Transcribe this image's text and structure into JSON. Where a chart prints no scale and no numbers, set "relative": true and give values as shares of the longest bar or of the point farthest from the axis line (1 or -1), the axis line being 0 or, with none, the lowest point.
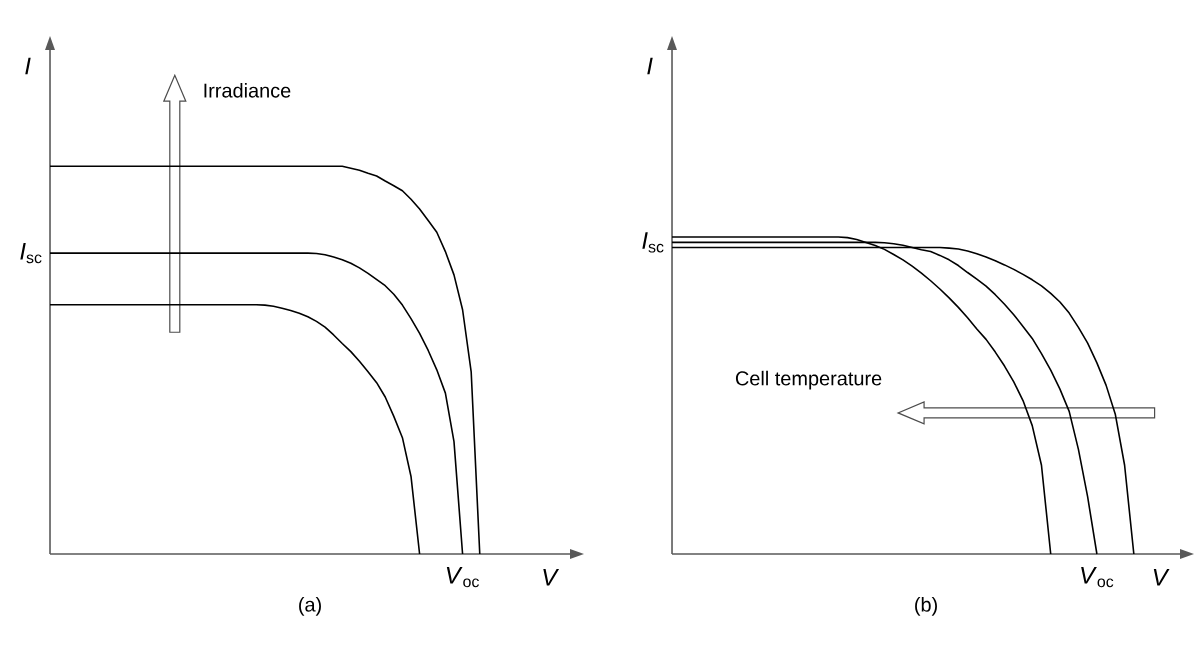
{
  "chart_data": [
    {
      "type": "line",
      "relative": true,
      "title": "(a)",
      "xlabel": "V",
      "ylabel": "I",
      "categories": [
        null,
        null,
        null,
        null,
        null,
        null,
        null,
        null,
        null,
        null,
        null,
        null,
        null,
        null,
        null,
        null,
        null,
        null,
        null,
        null,
        null,
        null,
        null,
        null,
        null,
        null,
        null,
        null,
        null,
        null,
        null,
        null,
        null,
        null,
        null,
        null,
        null,
        null,
        null,
        null,
        null,
        null,
        null,
        null,
        null,
        null,
        null,
        null,
        null,
        null,
        null
      ],
      "series": [
        {
          "color": "#000000",
          "values": [
            1,
            1,
            1,
            1,
            1,
            1,
            1,
            1,
            1,
            1,
            1,
            1,
            1,
            1,
            1,
            1,
            1,
            1,
            1,
            1,
            1,
            1,
            1,
            1,
            1,
            1,
            1,
            1,
            1,
            1,
            1,
            1,
            1,
            1,
            1,
            0.995,
            0.99,
            0.982,
            0.975,
            0.962,
            0.95,
            0.937,
            0.915,
            0.89,
            0.86,
            0.83,
            0.78,
            0.72,
            0.63,
            0.47,
            0
          ]
        },
        {
          "color": "#000000",
          "values": [
            0.776,
            0.776,
            0.776,
            0.776,
            0.776,
            0.776,
            0.776,
            0.776,
            0.776,
            0.776,
            0.776,
            0.776,
            0.776,
            0.776,
            0.776,
            0.776,
            0.776,
            0.776,
            0.776,
            0.776,
            0.776,
            0.776,
            0.776,
            0.776,
            0.776,
            0.776,
            0.776,
            0.776,
            0.776,
            0.776,
            0.776,
            0.775,
            0.772,
            0.766,
            0.759,
            0.75,
            0.738,
            0.724,
            0.708,
            0.692,
            0.67,
            0.642,
            0.607,
            0.569,
            0.525,
            0.475,
            0.415,
            0.29,
            0,
            null,
            null
          ]
        },
        {
          "color": "#000000",
          "values": [
            0.643,
            0.643,
            0.643,
            0.643,
            0.643,
            0.643,
            0.643,
            0.643,
            0.643,
            0.643,
            0.643,
            0.643,
            0.643,
            0.643,
            0.643,
            0.643,
            0.643,
            0.643,
            0.643,
            0.643,
            0.643,
            0.643,
            0.643,
            0.643,
            0.643,
            0.642,
            0.639,
            0.634,
            0.628,
            0.621,
            0.612,
            0.6,
            0.585,
            0.565,
            0.543,
            0.522,
            0.497,
            0.47,
            0.442,
            0.405,
            0.355,
            0.3,
            0.2,
            0,
            null,
            null,
            null,
            null,
            null,
            null,
            null
          ]
        }
      ],
      "annotations": [
        "*I*$_{sc}$",
        "*V*$_{oc}$",
        "Irradiance"
      ]
    },
    {
      "type": "line",
      "relative": true,
      "title": "(b)",
      "xlabel": "V",
      "ylabel": "I",
      "categories": [
        null,
        null,
        null,
        null,
        null,
        null,
        null,
        null,
        null,
        null,
        null,
        null,
        null,
        null,
        null,
        null,
        null,
        null,
        null,
        null,
        null,
        null,
        null,
        null,
        null,
        null,
        null,
        null,
        null,
        null,
        null,
        null,
        null,
        null,
        null,
        null,
        null,
        null,
        null,
        null,
        null,
        null,
        null,
        null,
        null,
        null,
        null,
        null,
        null,
        null,
        null
      ],
      "series": [
        {
          "color": "#000000",
          "values": [
            1,
            1,
            1,
            1,
            1,
            1,
            1,
            1,
            1,
            1,
            1,
            1,
            1,
            1,
            1,
            1,
            1,
            1,
            1,
            0.998,
            0.992,
            0.983,
            0.973,
            0.961,
            0.945,
            0.928,
            0.908,
            0.886,
            0.862,
            0.836,
            0.808,
            0.778,
            0.745,
            0.71,
            0.677,
            0.637,
            0.593,
            0.543,
            0.484,
            0.405,
            0.28,
            0,
            null,
            null,
            null,
            null,
            null,
            null,
            null,
            null,
            null
          ]
        },
        {
          "color": "#000000",
          "values": [
            0.983,
            0.983,
            0.983,
            0.983,
            0.983,
            0.983,
            0.983,
            0.983,
            0.983,
            0.983,
            0.983,
            0.983,
            0.983,
            0.983,
            0.983,
            0.983,
            0.983,
            0.983,
            0.983,
            0.983,
            0.983,
            0.983,
            0.983,
            0.982,
            0.979,
            0.974,
            0.967,
            0.96,
            0.954,
            0.942,
            0.928,
            0.91,
            0.888,
            0.867,
            0.845,
            0.818,
            0.788,
            0.755,
            0.718,
            0.68,
            0.632,
            0.58,
            0.52,
            0.45,
            0.33,
            0.18,
            0,
            null,
            null,
            null,
            null
          ]
        },
        {
          "color": "#000000",
          "values": [
            0.967,
            0.967,
            0.967,
            0.967,
            0.967,
            0.967,
            0.967,
            0.967,
            0.967,
            0.967,
            0.967,
            0.967,
            0.967,
            0.967,
            0.967,
            0.967,
            0.967,
            0.967,
            0.967,
            0.967,
            0.967,
            0.967,
            0.967,
            0.967,
            0.967,
            0.967,
            0.967,
            0.967,
            0.967,
            0.967,
            0.965,
            0.962,
            0.956,
            0.947,
            0.937,
            0.925,
            0.912,
            0.898,
            0.882,
            0.865,
            0.846,
            0.822,
            0.795,
            0.76,
            0.715,
            0.665,
            0.603,
            0.532,
            0.44,
            0.28,
            0
          ]
        }
      ],
      "annotations": [
        "*I*$_{sc}$",
        "*V*$_{oc}$",
        "Cell temperature"
      ]
    }
  ]
}
